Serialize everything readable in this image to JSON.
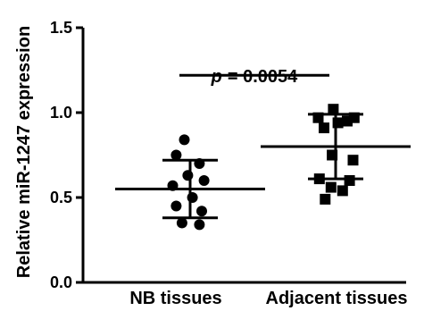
{
  "chart_data": {
    "type": "scatter",
    "ylabel": "Relative miR-1247 expression",
    "ylim": [
      0,
      1.5
    ],
    "yticks": [
      {
        "value": 0.0,
        "label": "0.0"
      },
      {
        "value": 0.5,
        "label": "0.5"
      },
      {
        "value": 1.0,
        "label": "1.0"
      },
      {
        "value": 1.5,
        "label": "1.5"
      }
    ],
    "categories": [
      "NB tissues",
      "Adjacent tissues"
    ],
    "groups": [
      {
        "category": "NB tissues",
        "marker": "circle",
        "points": [
          {
            "offset": -0.05,
            "value": 0.84
          },
          {
            "offset": -0.12,
            "value": 0.75
          },
          {
            "offset": 0.08,
            "value": 0.7
          },
          {
            "offset": -0.02,
            "value": 0.63
          },
          {
            "offset": 0.12,
            "value": 0.6
          },
          {
            "offset": -0.15,
            "value": 0.57
          },
          {
            "offset": 0.02,
            "value": 0.5
          },
          {
            "offset": -0.12,
            "value": 0.45
          },
          {
            "offset": 0.1,
            "value": 0.42
          },
          {
            "offset": -0.07,
            "value": 0.35
          },
          {
            "offset": 0.08,
            "value": 0.34
          }
        ],
        "mean": 0.55,
        "sd_low": 0.38,
        "sd_high": 0.72
      },
      {
        "category": "Adjacent tissues",
        "marker": "square",
        "points": [
          {
            "offset": -0.02,
            "value": 1.02
          },
          {
            "offset": -0.15,
            "value": 0.97
          },
          {
            "offset": 0.16,
            "value": 0.97
          },
          {
            "offset": 0.1,
            "value": 0.95
          },
          {
            "offset": 0.02,
            "value": 0.94
          },
          {
            "offset": -0.1,
            "value": 0.91
          },
          {
            "offset": -0.03,
            "value": 0.75
          },
          {
            "offset": 0.15,
            "value": 0.72
          },
          {
            "offset": -0.14,
            "value": 0.61
          },
          {
            "offset": 0.12,
            "value": 0.6
          },
          {
            "offset": -0.04,
            "value": 0.56
          },
          {
            "offset": 0.06,
            "value": 0.54
          },
          {
            "offset": -0.09,
            "value": 0.49
          }
        ],
        "mean": 0.8,
        "sd_low": 0.61,
        "sd_high": 0.99
      }
    ],
    "annotation": {
      "p_label": "p",
      "p_value": "= 0.0054",
      "bracket_y": 1.22
    },
    "grid": false,
    "legend": "none"
  }
}
